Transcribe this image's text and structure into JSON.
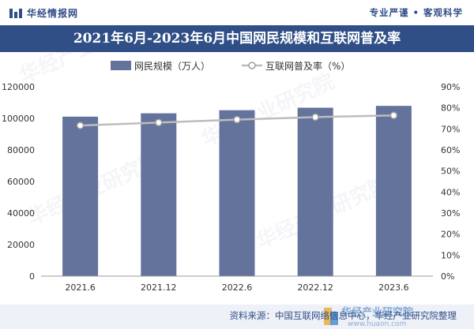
{
  "header": {
    "brand": "华经情报网",
    "slogan": "专业严谨 • 客观科学"
  },
  "chart_data": {
    "type": "bar",
    "title": "2021年6月-2023年6月中国网民规模和互联网普及率",
    "categories": [
      "2021.6",
      "2021.12",
      "2022.6",
      "2022.12",
      "2023.6"
    ],
    "series": [
      {
        "name": "网民规模（万人）",
        "type": "bar",
        "axis": "left",
        "values": [
          101074,
          103195,
          105144,
          106744,
          107901
        ],
        "color": "#63739b"
      },
      {
        "name": "互联网普及率（%）",
        "type": "line",
        "axis": "right",
        "values": [
          71.6,
          73.0,
          74.4,
          75.6,
          76.4
        ],
        "color": "#bdbdbd"
      }
    ],
    "yleft": {
      "min": 0,
      "max": 120000,
      "ticks": [
        "0",
        "20000",
        "40000",
        "60000",
        "80000",
        "100000",
        "120000"
      ]
    },
    "yright": {
      "min": 0,
      "max": 90,
      "ticks": [
        "0%",
        "10%",
        "20%",
        "30%",
        "40%",
        "50%",
        "60%",
        "70%",
        "80%",
        "90%"
      ]
    },
    "grid": false,
    "legend_position": "top-left"
  },
  "watermark": "华经产业研究院",
  "footer": {
    "source": "资料来源：中国互联网络信息中心，华经产业研究院整理",
    "logo_text": "华经产业研究院",
    "logo_url": "www.huaon.com"
  }
}
